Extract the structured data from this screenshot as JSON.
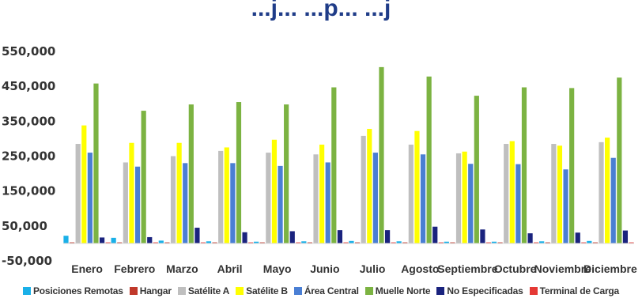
{
  "chart_data": {
    "type": "bar",
    "title": "...j... ...p... ...j",
    "categories": [
      "Enero",
      "Febrero",
      "Marzo",
      "Abril",
      "Mayo",
      "Junio",
      "Julio",
      "Agosto",
      "Septiembre",
      "Octubre",
      "Noviembre",
      "Diciembre"
    ],
    "y_ticks": [
      "550,000",
      "450,000",
      "350,000",
      "250,000",
      "150,000",
      "50,000",
      "-50,000"
    ],
    "ylim": [
      -50000,
      550000
    ],
    "grid": false,
    "legend_position": "bottom",
    "series": [
      {
        "name": "Posiciones Remotas",
        "color": "#1ab0e8",
        "values": [
          22000,
          16000,
          8000,
          6000,
          5000,
          6000,
          7000,
          6000,
          5000,
          5000,
          6000,
          7000
        ]
      },
      {
        "name": "Hangar",
        "color": "#c0392b",
        "values": [
          3000,
          3000,
          3000,
          3000,
          3000,
          3000,
          3000,
          3000,
          3000,
          3000,
          3000,
          3000
        ]
      },
      {
        "name": "Satélite A",
        "color": "#bfbfbf",
        "values": [
          285000,
          232000,
          250000,
          265000,
          260000,
          255000,
          308000,
          283000,
          258000,
          285000,
          285000,
          290000
        ]
      },
      {
        "name": "Satélite B",
        "color": "#ffff00",
        "values": [
          338000,
          288000,
          288000,
          275000,
          297000,
          283000,
          328000,
          322000,
          263000,
          293000,
          280000,
          303000
        ]
      },
      {
        "name": "Área Central",
        "color": "#4a7fd4",
        "values": [
          260000,
          220000,
          230000,
          230000,
          222000,
          232000,
          260000,
          255000,
          228000,
          227000,
          212000,
          245000
        ]
      },
      {
        "name": "Muelle Norte",
        "color": "#7cb342",
        "values": [
          458000,
          380000,
          398000,
          405000,
          398000,
          447000,
          505000,
          478000,
          423000,
          447000,
          445000,
          475000
        ]
      },
      {
        "name": "No Especificadas",
        "color": "#1a237e",
        "values": [
          17000,
          18000,
          45000,
          32000,
          35000,
          38000,
          38000,
          48000,
          40000,
          29000,
          31000,
          37000
        ]
      },
      {
        "name": "Terminal de Carga",
        "color": "#e53935",
        "values": [
          3000,
          3000,
          3000,
          3000,
          3000,
          3000,
          3000,
          3000,
          3000,
          3000,
          3000,
          3000
        ]
      }
    ]
  }
}
